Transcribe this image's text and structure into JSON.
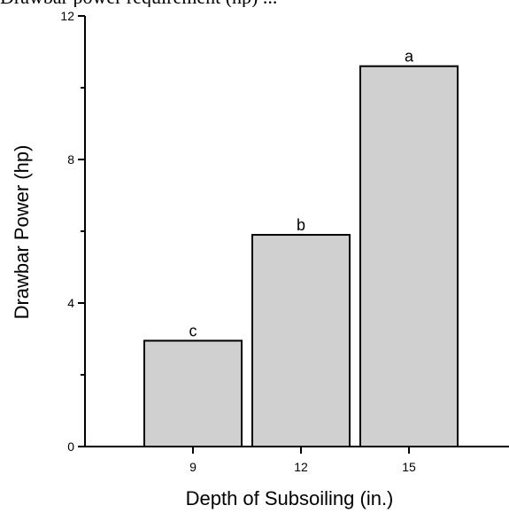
{
  "header_partial_text": "Drawbar power requirement (hp) ...",
  "colors": {
    "bar_fill": "#d0d0d0",
    "bar_stroke": "#000000",
    "axis": "#000000"
  },
  "chart_data": {
    "type": "bar",
    "categories": [
      "9",
      "12",
      "15"
    ],
    "values": [
      2.95,
      5.9,
      10.6
    ],
    "bar_labels": [
      "c",
      "b",
      "a"
    ],
    "xlabel": "Depth of Subsoiling (in.)",
    "ylabel": "Drawbar Power (hp)",
    "ylim": [
      0,
      12
    ],
    "y_ticks": [
      0,
      4,
      8,
      12
    ],
    "y_tick_labels": [
      "0",
      "4",
      "8",
      "12"
    ],
    "grid": false
  }
}
